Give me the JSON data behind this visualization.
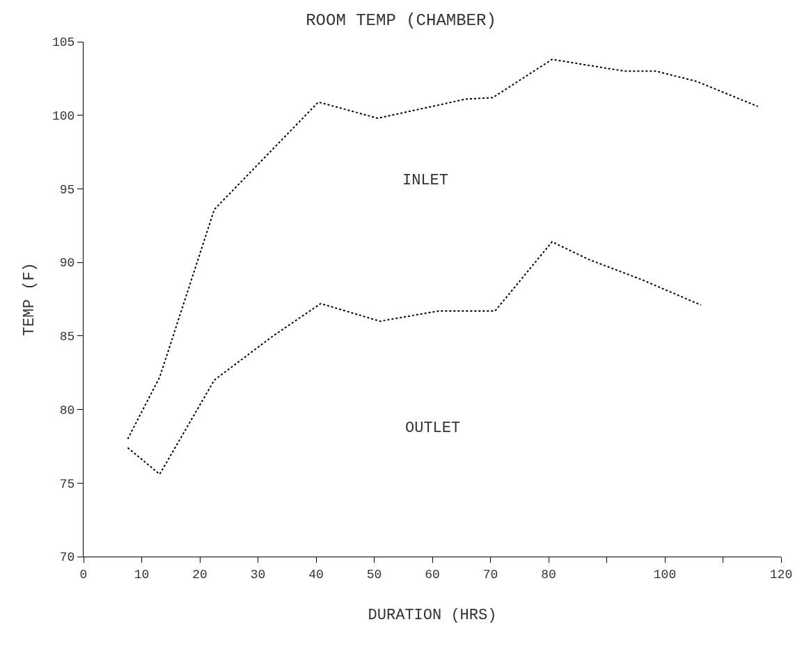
{
  "chart_data": {
    "type": "line",
    "title": "ROOM TEMP (CHAMBER)",
    "xlabel": "DURATION (HRS)",
    "ylabel": "TEMP (F)",
    "xlim": [
      0,
      120
    ],
    "xticks": [
      0,
      10,
      20,
      30,
      40,
      50,
      60,
      70,
      80,
      {
        "value": 90,
        "label": null
      },
      100,
      {
        "value": 110,
        "label": null
      },
      120
    ],
    "ylim": [
      70,
      105
    ],
    "yticks": [
      70,
      75,
      80,
      85,
      90,
      95,
      100,
      105
    ],
    "marker": "none",
    "line_style": "dotted",
    "series": [
      {
        "color": "#000000",
        "x": [
          7.6,
          13.1,
          22.5,
          40.4,
          50.6,
          61.1,
          65.7,
          70.4,
          80.6,
          93.1,
          98.5,
          105.5,
          116
        ],
        "values": [
          78.0,
          82.2,
          93.6,
          100.9,
          99.8,
          100.7,
          101.1,
          101.2,
          103.8,
          103.0,
          103.0,
          102.3,
          100.6
        ]
      },
      {
        "color": "#000000",
        "x": [
          7.6,
          13.1,
          22.5,
          32.6,
          40.8,
          51,
          61.1,
          70.8,
          80.6,
          86.9,
          96.2,
          106.2
        ],
        "values": [
          77.4,
          75.6,
          82.0,
          85.0,
          87.2,
          86.0,
          86.7,
          86.7,
          91.4,
          90.2,
          88.8,
          87.1
        ]
      }
    ],
    "annotations": [
      "INLET",
      "OUTLET"
    ]
  }
}
